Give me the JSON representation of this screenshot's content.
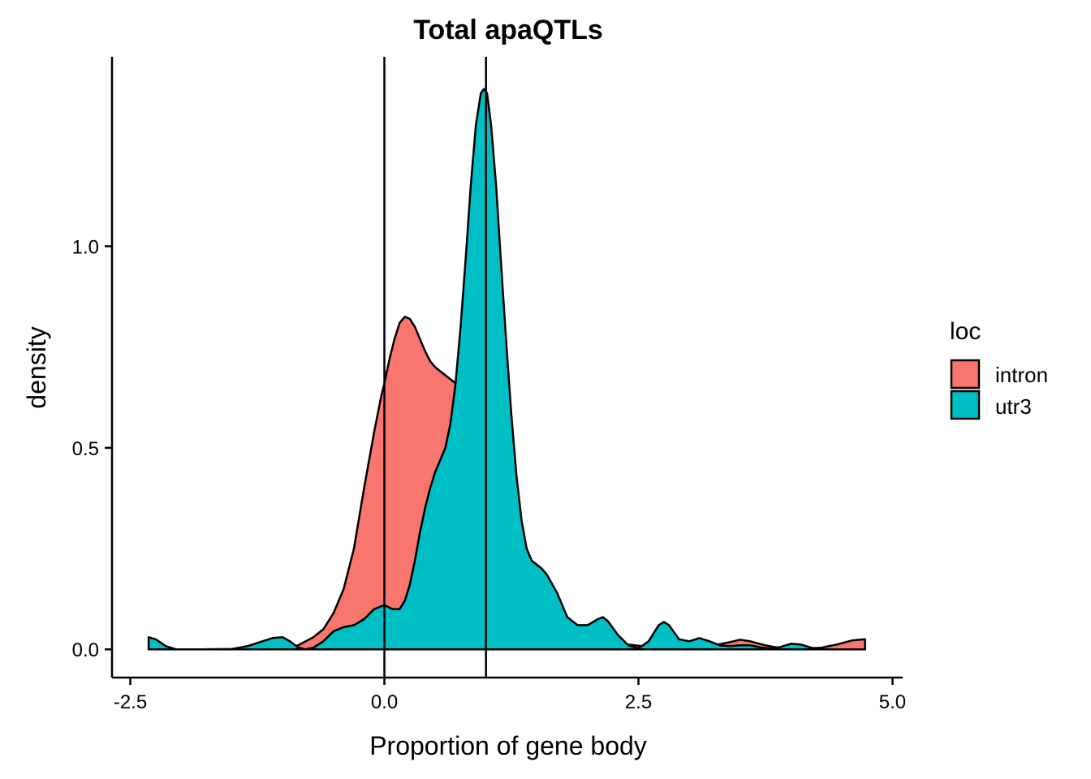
{
  "chart_data": {
    "type": "area",
    "title": "Total apaQTLs",
    "xlabel": "Proportion of gene body",
    "ylabel": "density",
    "xlim": [
      -2.68,
      5.1
    ],
    "ylim": [
      -0.07,
      1.47
    ],
    "xticks": [
      -2.5,
      0.0,
      2.5,
      5.0
    ],
    "xtick_labels": [
      "-2.5",
      "0.0",
      "2.5",
      "5.0"
    ],
    "yticks": [
      0.0,
      0.5,
      1.0
    ],
    "ytick_labels": [
      "0.0",
      "0.5",
      "1.0"
    ],
    "vlines": [
      0.0,
      1.0
    ],
    "legend": {
      "title": "loc",
      "position": "right"
    },
    "series": [
      {
        "name": "intron",
        "color": "#F8766D",
        "points": [
          [
            -2.32,
            0.0
          ],
          [
            -2.0,
            0.0
          ],
          [
            -1.6,
            0.0
          ],
          [
            -1.3,
            0.0
          ],
          [
            -1.0,
            0.002
          ],
          [
            -0.85,
            0.01
          ],
          [
            -0.7,
            0.03
          ],
          [
            -0.6,
            0.05
          ],
          [
            -0.5,
            0.09
          ],
          [
            -0.4,
            0.15
          ],
          [
            -0.3,
            0.25
          ],
          [
            -0.2,
            0.4
          ],
          [
            -0.1,
            0.54
          ],
          [
            -0.03,
            0.63
          ],
          [
            0.0,
            0.66
          ],
          [
            0.05,
            0.72
          ],
          [
            0.1,
            0.77
          ],
          [
            0.15,
            0.81
          ],
          [
            0.2,
            0.825
          ],
          [
            0.25,
            0.82
          ],
          [
            0.3,
            0.8
          ],
          [
            0.35,
            0.77
          ],
          [
            0.4,
            0.74
          ],
          [
            0.45,
            0.715
          ],
          [
            0.5,
            0.7
          ],
          [
            0.55,
            0.69
          ],
          [
            0.6,
            0.68
          ],
          [
            0.65,
            0.67
          ],
          [
            0.7,
            0.66
          ],
          [
            0.75,
            0.65
          ],
          [
            0.8,
            0.6
          ],
          [
            0.85,
            0.52
          ],
          [
            0.9,
            0.42
          ],
          [
            0.95,
            0.33
          ],
          [
            1.0,
            0.26
          ],
          [
            1.1,
            0.19
          ],
          [
            1.2,
            0.14
          ],
          [
            1.3,
            0.1
          ],
          [
            1.4,
            0.07
          ],
          [
            1.5,
            0.05
          ],
          [
            1.6,
            0.04
          ],
          [
            1.8,
            0.03
          ],
          [
            2.0,
            0.025
          ],
          [
            2.2,
            0.02
          ],
          [
            2.4,
            0.012
          ],
          [
            2.6,
            0.006
          ],
          [
            2.8,
            0.004
          ],
          [
            3.0,
            0.005
          ],
          [
            3.2,
            0.008
          ],
          [
            3.4,
            0.018
          ],
          [
            3.5,
            0.024
          ],
          [
            3.6,
            0.02
          ],
          [
            3.75,
            0.01
          ],
          [
            3.9,
            0.003
          ],
          [
            4.1,
            0.002
          ],
          [
            4.3,
            0.004
          ],
          [
            4.45,
            0.012
          ],
          [
            4.6,
            0.022
          ],
          [
            4.73,
            0.025
          ]
        ]
      },
      {
        "name": "utr3",
        "color": "#00BFC4",
        "points": [
          [
            -2.32,
            0.03
          ],
          [
            -2.25,
            0.025
          ],
          [
            -2.15,
            0.008
          ],
          [
            -2.05,
            0.0
          ],
          [
            -1.8,
            0.0
          ],
          [
            -1.5,
            0.001
          ],
          [
            -1.35,
            0.008
          ],
          [
            -1.2,
            0.02
          ],
          [
            -1.1,
            0.028
          ],
          [
            -1.0,
            0.03
          ],
          [
            -0.93,
            0.02
          ],
          [
            -0.85,
            0.005
          ],
          [
            -0.78,
            0.0
          ],
          [
            -0.7,
            0.004
          ],
          [
            -0.6,
            0.02
          ],
          [
            -0.5,
            0.045
          ],
          [
            -0.4,
            0.055
          ],
          [
            -0.3,
            0.06
          ],
          [
            -0.2,
            0.075
          ],
          [
            -0.1,
            0.1
          ],
          [
            0.0,
            0.11
          ],
          [
            0.08,
            0.1
          ],
          [
            0.15,
            0.1
          ],
          [
            0.2,
            0.12
          ],
          [
            0.25,
            0.16
          ],
          [
            0.3,
            0.22
          ],
          [
            0.35,
            0.29
          ],
          [
            0.4,
            0.35
          ],
          [
            0.45,
            0.4
          ],
          [
            0.5,
            0.44
          ],
          [
            0.55,
            0.47
          ],
          [
            0.6,
            0.5
          ],
          [
            0.65,
            0.56
          ],
          [
            0.7,
            0.66
          ],
          [
            0.75,
            0.8
          ],
          [
            0.8,
            0.97
          ],
          [
            0.85,
            1.15
          ],
          [
            0.9,
            1.3
          ],
          [
            0.95,
            1.38
          ],
          [
            0.98,
            1.39
          ],
          [
            1.01,
            1.38
          ],
          [
            1.05,
            1.3
          ],
          [
            1.1,
            1.15
          ],
          [
            1.15,
            0.95
          ],
          [
            1.2,
            0.76
          ],
          [
            1.25,
            0.58
          ],
          [
            1.3,
            0.43
          ],
          [
            1.35,
            0.32
          ],
          [
            1.4,
            0.25
          ],
          [
            1.45,
            0.22
          ],
          [
            1.5,
            0.21
          ],
          [
            1.55,
            0.2
          ],
          [
            1.6,
            0.185
          ],
          [
            1.7,
            0.14
          ],
          [
            1.8,
            0.08
          ],
          [
            1.9,
            0.06
          ],
          [
            2.0,
            0.06
          ],
          [
            2.1,
            0.075
          ],
          [
            2.15,
            0.08
          ],
          [
            2.2,
            0.07
          ],
          [
            2.3,
            0.035
          ],
          [
            2.4,
            0.01
          ],
          [
            2.5,
            0.002
          ],
          [
            2.6,
            0.02
          ],
          [
            2.7,
            0.06
          ],
          [
            2.75,
            0.068
          ],
          [
            2.8,
            0.06
          ],
          [
            2.9,
            0.025
          ],
          [
            3.0,
            0.02
          ],
          [
            3.1,
            0.028
          ],
          [
            3.2,
            0.02
          ],
          [
            3.3,
            0.01
          ],
          [
            3.4,
            0.008
          ],
          [
            3.5,
            0.01
          ],
          [
            3.6,
            0.01
          ],
          [
            3.7,
            0.005
          ],
          [
            3.8,
            0.002
          ],
          [
            3.9,
            0.006
          ],
          [
            4.0,
            0.014
          ],
          [
            4.1,
            0.012
          ],
          [
            4.2,
            0.004
          ],
          [
            4.3,
            0.0
          ],
          [
            4.73,
            0.0
          ]
        ]
      }
    ]
  }
}
